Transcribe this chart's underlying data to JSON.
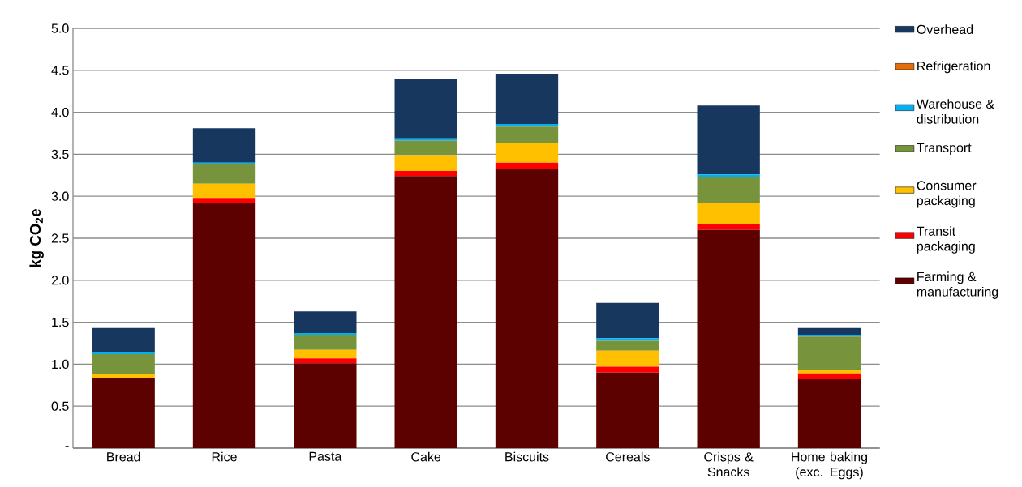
{
  "chart_data": {
    "type": "bar",
    "stacked": true,
    "ylabel": "kg CO$_{2}$e",
    "categories": [
      "Bread",
      "Rice",
      "Pasta",
      "Cake",
      "Biscuits",
      "Cereals",
      "Crisps & Snacks",
      "Home baking (exc. Eggs)"
    ],
    "series": [
      {
        "name": "Farming & manufacturing",
        "color": "#5c0000",
        "values": [
          0.84,
          2.92,
          1.01,
          3.24,
          3.33,
          0.9,
          2.6,
          0.82
        ]
      },
      {
        "name": "Transit packaging",
        "color": "#ff0000",
        "values": [
          0,
          0.06,
          0.06,
          0.06,
          0.07,
          0.07,
          0.07,
          0.07
        ]
      },
      {
        "name": "Consumer packaging",
        "color": "#ffc000",
        "values": [
          0.04,
          0.17,
          0.1,
          0.19,
          0.24,
          0.19,
          0.25,
          0.04
        ]
      },
      {
        "name": "Transport",
        "color": "#77933c",
        "values": [
          0.24,
          0.23,
          0.18,
          0.17,
          0.19,
          0.12,
          0.31,
          0.4
        ]
      },
      {
        "name": "Warehouse & distribution",
        "color": "#00b0f0",
        "values": [
          0.02,
          0.02,
          0.02,
          0.03,
          0.03,
          0.03,
          0.03,
          0.02
        ]
      },
      {
        "name": "Refrigeration",
        "color": "#e46c0a",
        "values": [
          0,
          0,
          0,
          0,
          0,
          0,
          0,
          0
        ]
      },
      {
        "name": "Overhead",
        "color": "#17375e",
        "values": [
          0.29,
          0.41,
          0.26,
          0.71,
          0.6,
          0.42,
          0.82,
          0.08
        ]
      }
    ],
    "ylim": [
      0,
      5
    ],
    "yticks": [
      {
        "value": 0,
        "label": "-"
      },
      0.5,
      {
        "value": 1,
        "label": "1.0"
      },
      1.5,
      {
        "value": 2,
        "label": "2.0"
      },
      2.5,
      {
        "value": 3,
        "label": "3.0"
      },
      3.5,
      {
        "value": 4,
        "label": "4.0"
      },
      4.5,
      {
        "value": 5,
        "label": "5.0"
      }
    ],
    "grid": "y",
    "legend": "right"
  }
}
